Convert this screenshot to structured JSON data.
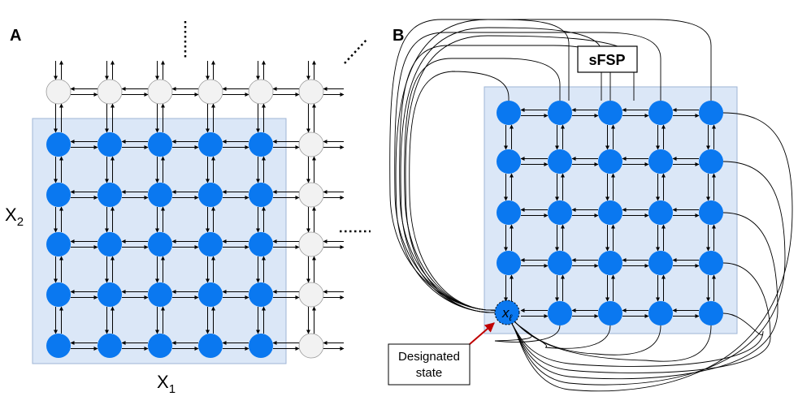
{
  "panel_a": {
    "letter": "A",
    "x_axis_label": "X",
    "x_axis_sub": "1",
    "y_axis_label": "X",
    "y_axis_sub": "2",
    "grid_cols": 6,
    "grid_rows": 6,
    "highlighted_cols": 5,
    "highlighted_rows": 5,
    "continuation_marks": [
      "vertical-dots",
      "diagonal-dots",
      "horizontal-dots"
    ]
  },
  "panel_b": {
    "letter": "B",
    "box_label": "sFSP",
    "grid_cols": 5,
    "grid_rows": 5,
    "designated_node_label": "x",
    "designated_node_sub": "ℓ",
    "callout_line1": "Designated",
    "callout_line2": "state"
  },
  "colors": {
    "node_blue": "#0a78f0",
    "node_gray": "#f2f2f2",
    "region_fill": "#dbe7f7",
    "region_stroke": "#9fb6d6",
    "callout_arrow": "#c00000"
  }
}
